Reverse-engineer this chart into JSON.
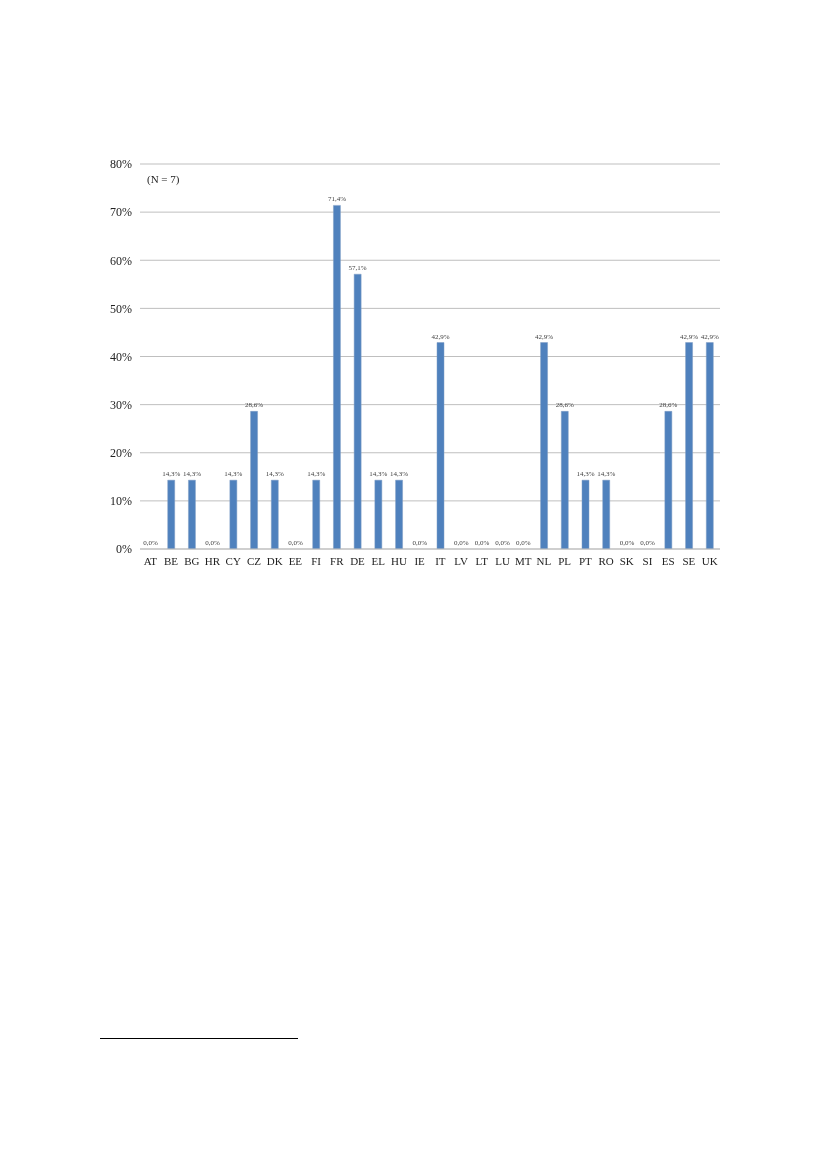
{
  "chart_data": {
    "type": "bar",
    "categories": [
      "AT",
      "BE",
      "BG",
      "HR",
      "CY",
      "CZ",
      "DK",
      "EE",
      "FI",
      "FR",
      "DE",
      "EL",
      "HU",
      "IE",
      "IT",
      "LV",
      "LT",
      "LU",
      "MT",
      "NL",
      "PL",
      "PT",
      "RO",
      "SK",
      "SI",
      "ES",
      "SE",
      "UK"
    ],
    "values": [
      0,
      14.3,
      14.3,
      0,
      14.3,
      28.6,
      14.3,
      0,
      14.3,
      71.4,
      57.1,
      14.3,
      14.3,
      0,
      42.9,
      0,
      0,
      0,
      0,
      42.9,
      28.6,
      14.3,
      14.3,
      0,
      0,
      28.6,
      42.9,
      42.9
    ],
    "value_labels": [
      "0,0%",
      "14,3%",
      "14,3%",
      "0,0%",
      "14,3%",
      "28,6%",
      "14,3%",
      "0,0%",
      "14,3%",
      "71,4%",
      "57,1%",
      "14,3%",
      "14,3%",
      "0,0%",
      "42,9%",
      "0,0%",
      "0,0%",
      "0,0%",
      "0,0%",
      "42,9%",
      "28,6%",
      "14,3%",
      "14,3%",
      "0,0%",
      "0,0%",
      "28,6%",
      "42,9%",
      "42,9%"
    ],
    "color": "#4f81bd",
    "ylim": [
      0,
      80
    ],
    "yticks": [
      {
        "value": 0,
        "label": "0%"
      },
      {
        "value": 10,
        "label": "10%"
      },
      {
        "value": 20,
        "label": "20%"
      },
      {
        "value": 30,
        "label": "30%"
      },
      {
        "value": 40,
        "label": "40%"
      },
      {
        "value": 50,
        "label": "50%"
      },
      {
        "value": 60,
        "label": "60%"
      },
      {
        "value": 70,
        "label": "70%"
      },
      {
        "value": 80,
        "label": "80%"
      }
    ],
    "grid": "y",
    "annotations": [
      "(N = 7)"
    ]
  }
}
